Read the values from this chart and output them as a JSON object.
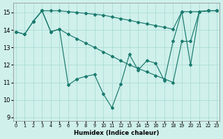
{
  "xlabel": "Humidex (Indice chaleur)",
  "xlim": [
    -0.3,
    23.3
  ],
  "ylim": [
    8.8,
    15.55
  ],
  "yticks": [
    9,
    10,
    11,
    12,
    13,
    14,
    15
  ],
  "xticks": [
    0,
    1,
    2,
    3,
    4,
    5,
    6,
    7,
    8,
    9,
    10,
    11,
    12,
    13,
    14,
    15,
    16,
    17,
    18,
    19,
    20,
    21,
    22,
    23
  ],
  "bg_color": "#cff0eb",
  "grid_color": "#a8d8d2",
  "line_color": "#1a7a6e",
  "line_top_x": [
    2,
    3,
    4,
    5,
    6,
    7,
    8,
    9,
    10,
    11,
    12,
    13,
    14,
    15,
    16,
    17,
    18,
    19,
    20,
    21,
    22,
    23
  ],
  "line_top_y": [
    14.5,
    15.1,
    15.1,
    15.1,
    15.05,
    15.0,
    14.95,
    14.9,
    14.85,
    14.75,
    14.65,
    14.55,
    14.45,
    14.35,
    14.25,
    14.15,
    14.05,
    15.05,
    15.05,
    15.05,
    15.1,
    15.1
  ],
  "line_mid_x": [
    0,
    1,
    2,
    3,
    4,
    5,
    6,
    7,
    8,
    9,
    10,
    11,
    12,
    13,
    14,
    15,
    16,
    17,
    18,
    19,
    20,
    21,
    22,
    23
  ],
  "line_mid_y": [
    13.9,
    13.75,
    14.5,
    15.1,
    13.9,
    14.05,
    13.75,
    13.5,
    13.25,
    13.0,
    12.75,
    12.5,
    12.25,
    12.0,
    11.8,
    11.6,
    11.4,
    11.2,
    11.0,
    13.35,
    13.35,
    15.05,
    15.1,
    15.1
  ],
  "line_low_x": [
    0,
    1,
    2,
    3,
    4,
    5,
    6,
    7,
    8,
    9,
    10,
    11,
    12,
    13,
    14,
    15,
    16,
    17,
    18,
    19,
    20,
    21,
    22,
    23
  ],
  "line_low_y": [
    13.9,
    13.75,
    14.5,
    15.1,
    13.9,
    14.05,
    10.85,
    11.2,
    11.35,
    11.45,
    10.35,
    9.55,
    10.9,
    12.6,
    11.7,
    12.25,
    12.1,
    11.1,
    13.35,
    15.05,
    12.0,
    15.05,
    15.1,
    15.1
  ]
}
